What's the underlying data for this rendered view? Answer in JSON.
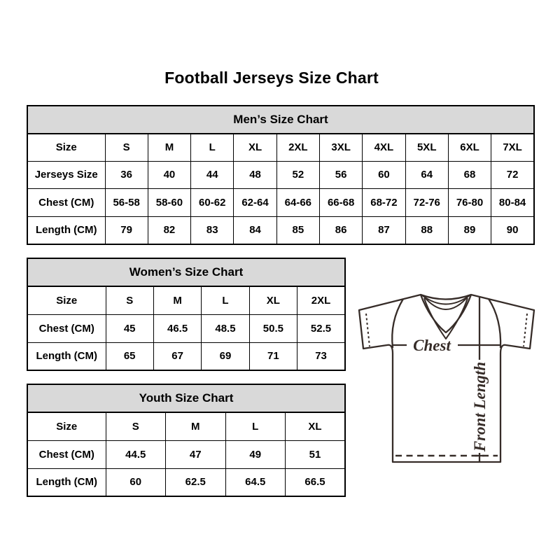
{
  "page": {
    "title": "Football Jerseys Size Chart"
  },
  "tables": [
    {
      "id": "mens",
      "header": "Men’s Size Chart",
      "rows": [
        [
          "Size",
          "S",
          "M",
          "L",
          "XL",
          "2XL",
          "3XL",
          "4XL",
          "5XL",
          "6XL",
          "7XL"
        ],
        [
          "Jerseys Size",
          "36",
          "40",
          "44",
          "48",
          "52",
          "56",
          "60",
          "64",
          "68",
          "72"
        ],
        [
          "Chest (CM)",
          "56-58",
          "58-60",
          "60-62",
          "62-64",
          "64-66",
          "66-68",
          "68-72",
          "72-76",
          "76-80",
          "80-84"
        ],
        [
          "Length (CM)",
          "79",
          "82",
          "83",
          "84",
          "85",
          "86",
          "87",
          "88",
          "89",
          "90"
        ]
      ]
    },
    {
      "id": "womens",
      "header": "Women’s Size Chart",
      "rows": [
        [
          "Size",
          "S",
          "M",
          "L",
          "XL",
          "2XL"
        ],
        [
          "Chest (CM)",
          "45",
          "46.5",
          "48.5",
          "50.5",
          "52.5"
        ],
        [
          "Length (CM)",
          "65",
          "67",
          "69",
          "71",
          "73"
        ]
      ]
    },
    {
      "id": "youth",
      "header": "Youth Size Chart",
      "rows": [
        [
          "Size",
          "S",
          "M",
          "L",
          "XL"
        ],
        [
          "Chest (CM)",
          "44.5",
          "47",
          "49",
          "51"
        ],
        [
          "Length (CM)",
          "60",
          "62.5",
          "64.5",
          "66.5"
        ]
      ]
    }
  ],
  "diagram": {
    "chest_label": "Chest",
    "front_length_label": "Front Length"
  },
  "colors": {
    "header_bg": "#d9d9d9",
    "table_border": "#000000",
    "text": "#000000",
    "diagram_stroke": "#362c28"
  }
}
